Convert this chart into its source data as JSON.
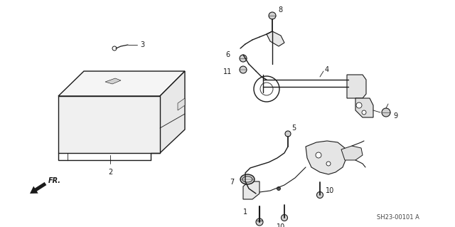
{
  "bg_color": "#ffffff",
  "line_color": "#1a1a1a",
  "diagram_code": "SH23-00101 A",
  "fig_w": 6.4,
  "fig_h": 3.19,
  "dpi": 100
}
